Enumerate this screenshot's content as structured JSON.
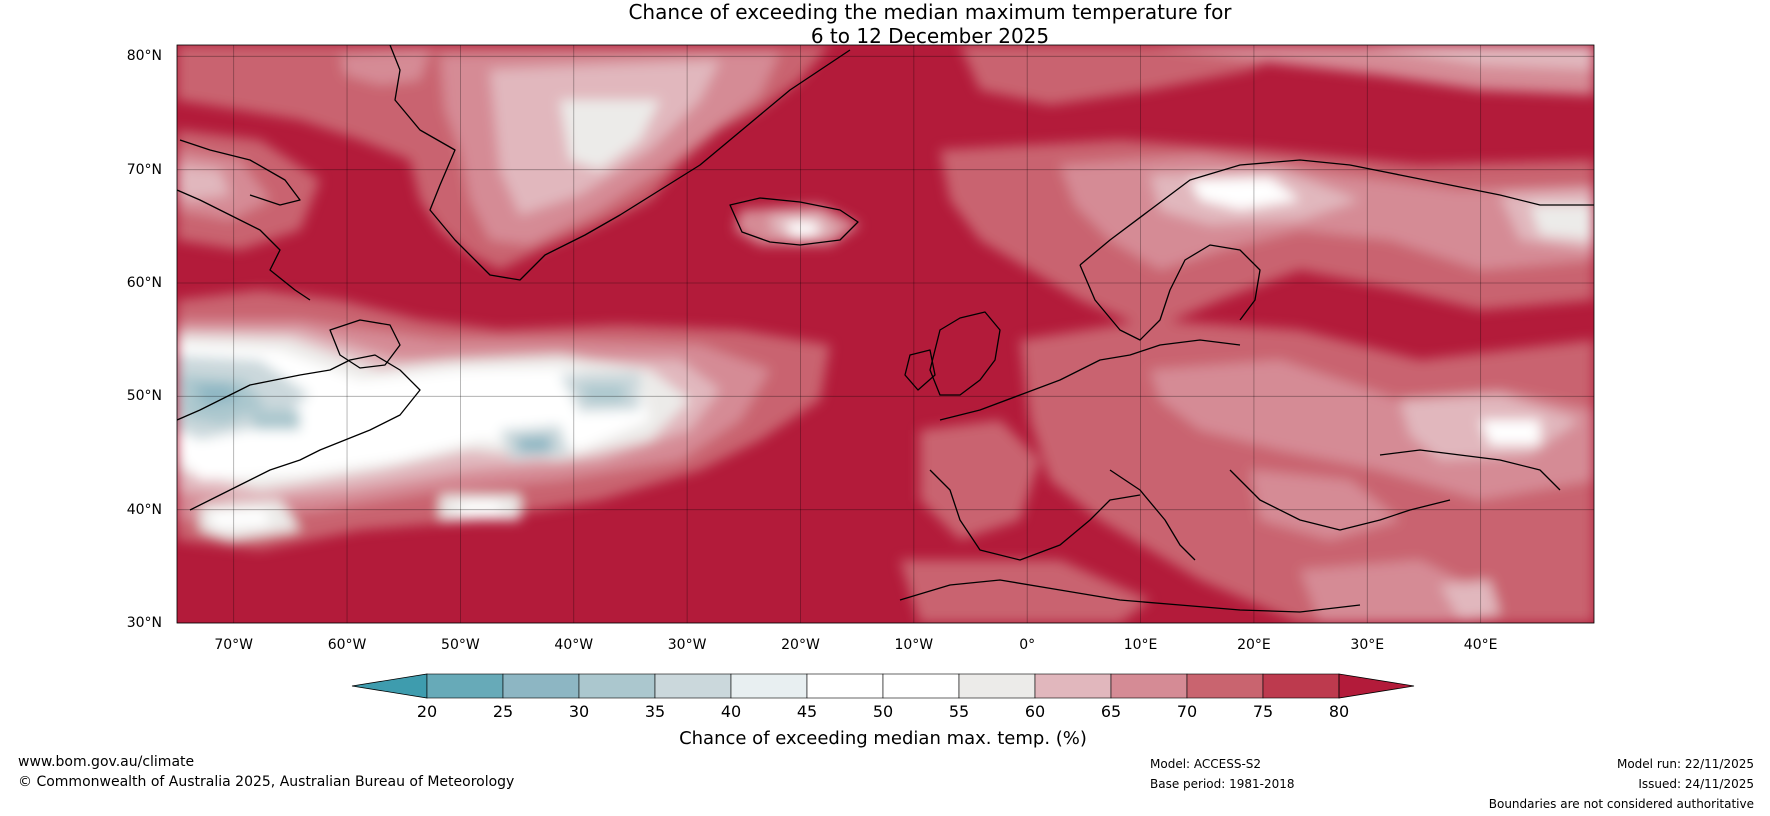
{
  "title": {
    "line1": "Chance of exceeding the median maximum temperature for",
    "line2": "6 to 12 December 2025"
  },
  "map": {
    "lat_labels": [
      "80°N",
      "70°N",
      "60°N",
      "50°N",
      "40°N",
      "30°N"
    ],
    "lon_labels": [
      "70°W",
      "60°W",
      "50°W",
      "40°W",
      "30°W",
      "20°W",
      "10°W",
      "0°",
      "10°E",
      "20°E",
      "30°E",
      "40°E"
    ],
    "lat_values": [
      80,
      70,
      60,
      50,
      40,
      30
    ],
    "lon_values": [
      -70,
      -60,
      -50,
      -40,
      -30,
      -20,
      -10,
      0,
      10,
      20,
      30,
      40
    ],
    "lon_range": [
      -75,
      50
    ],
    "lat_range": [
      30,
      81
    ],
    "dominant_color": "#b31b3a"
  },
  "colorbar": {
    "ticks": [
      "20",
      "25",
      "30",
      "35",
      "40",
      "45",
      "50",
      "55",
      "60",
      "65",
      "70",
      "75",
      "80"
    ],
    "colors": [
      "#67aab8",
      "#8db6c3",
      "#abc7ce",
      "#cbd8dc",
      "#e8eff1",
      "#ffffff",
      "#ffffff",
      "#ecebe9",
      "#e1b7bd",
      "#d58b95",
      "#c9646f",
      "#bd3a4e"
    ],
    "under_color": "#3e9cae",
    "over_color": "#b31b3a",
    "label": "Chance of exceeding median max. temp. (%)"
  },
  "footer": {
    "url": "www.bom.gov.au/climate",
    "copyright": "© Commonwealth of Australia 2025, Australian Bureau of Meteorology",
    "model": "Model: ACCESS-S2",
    "base_period": "Base period: 1981-2018",
    "model_run": "Model run: 22/11/2025",
    "issued": "Issued: 24/11/2025",
    "disclaimer": "Boundaries are not considered authoritative"
  }
}
